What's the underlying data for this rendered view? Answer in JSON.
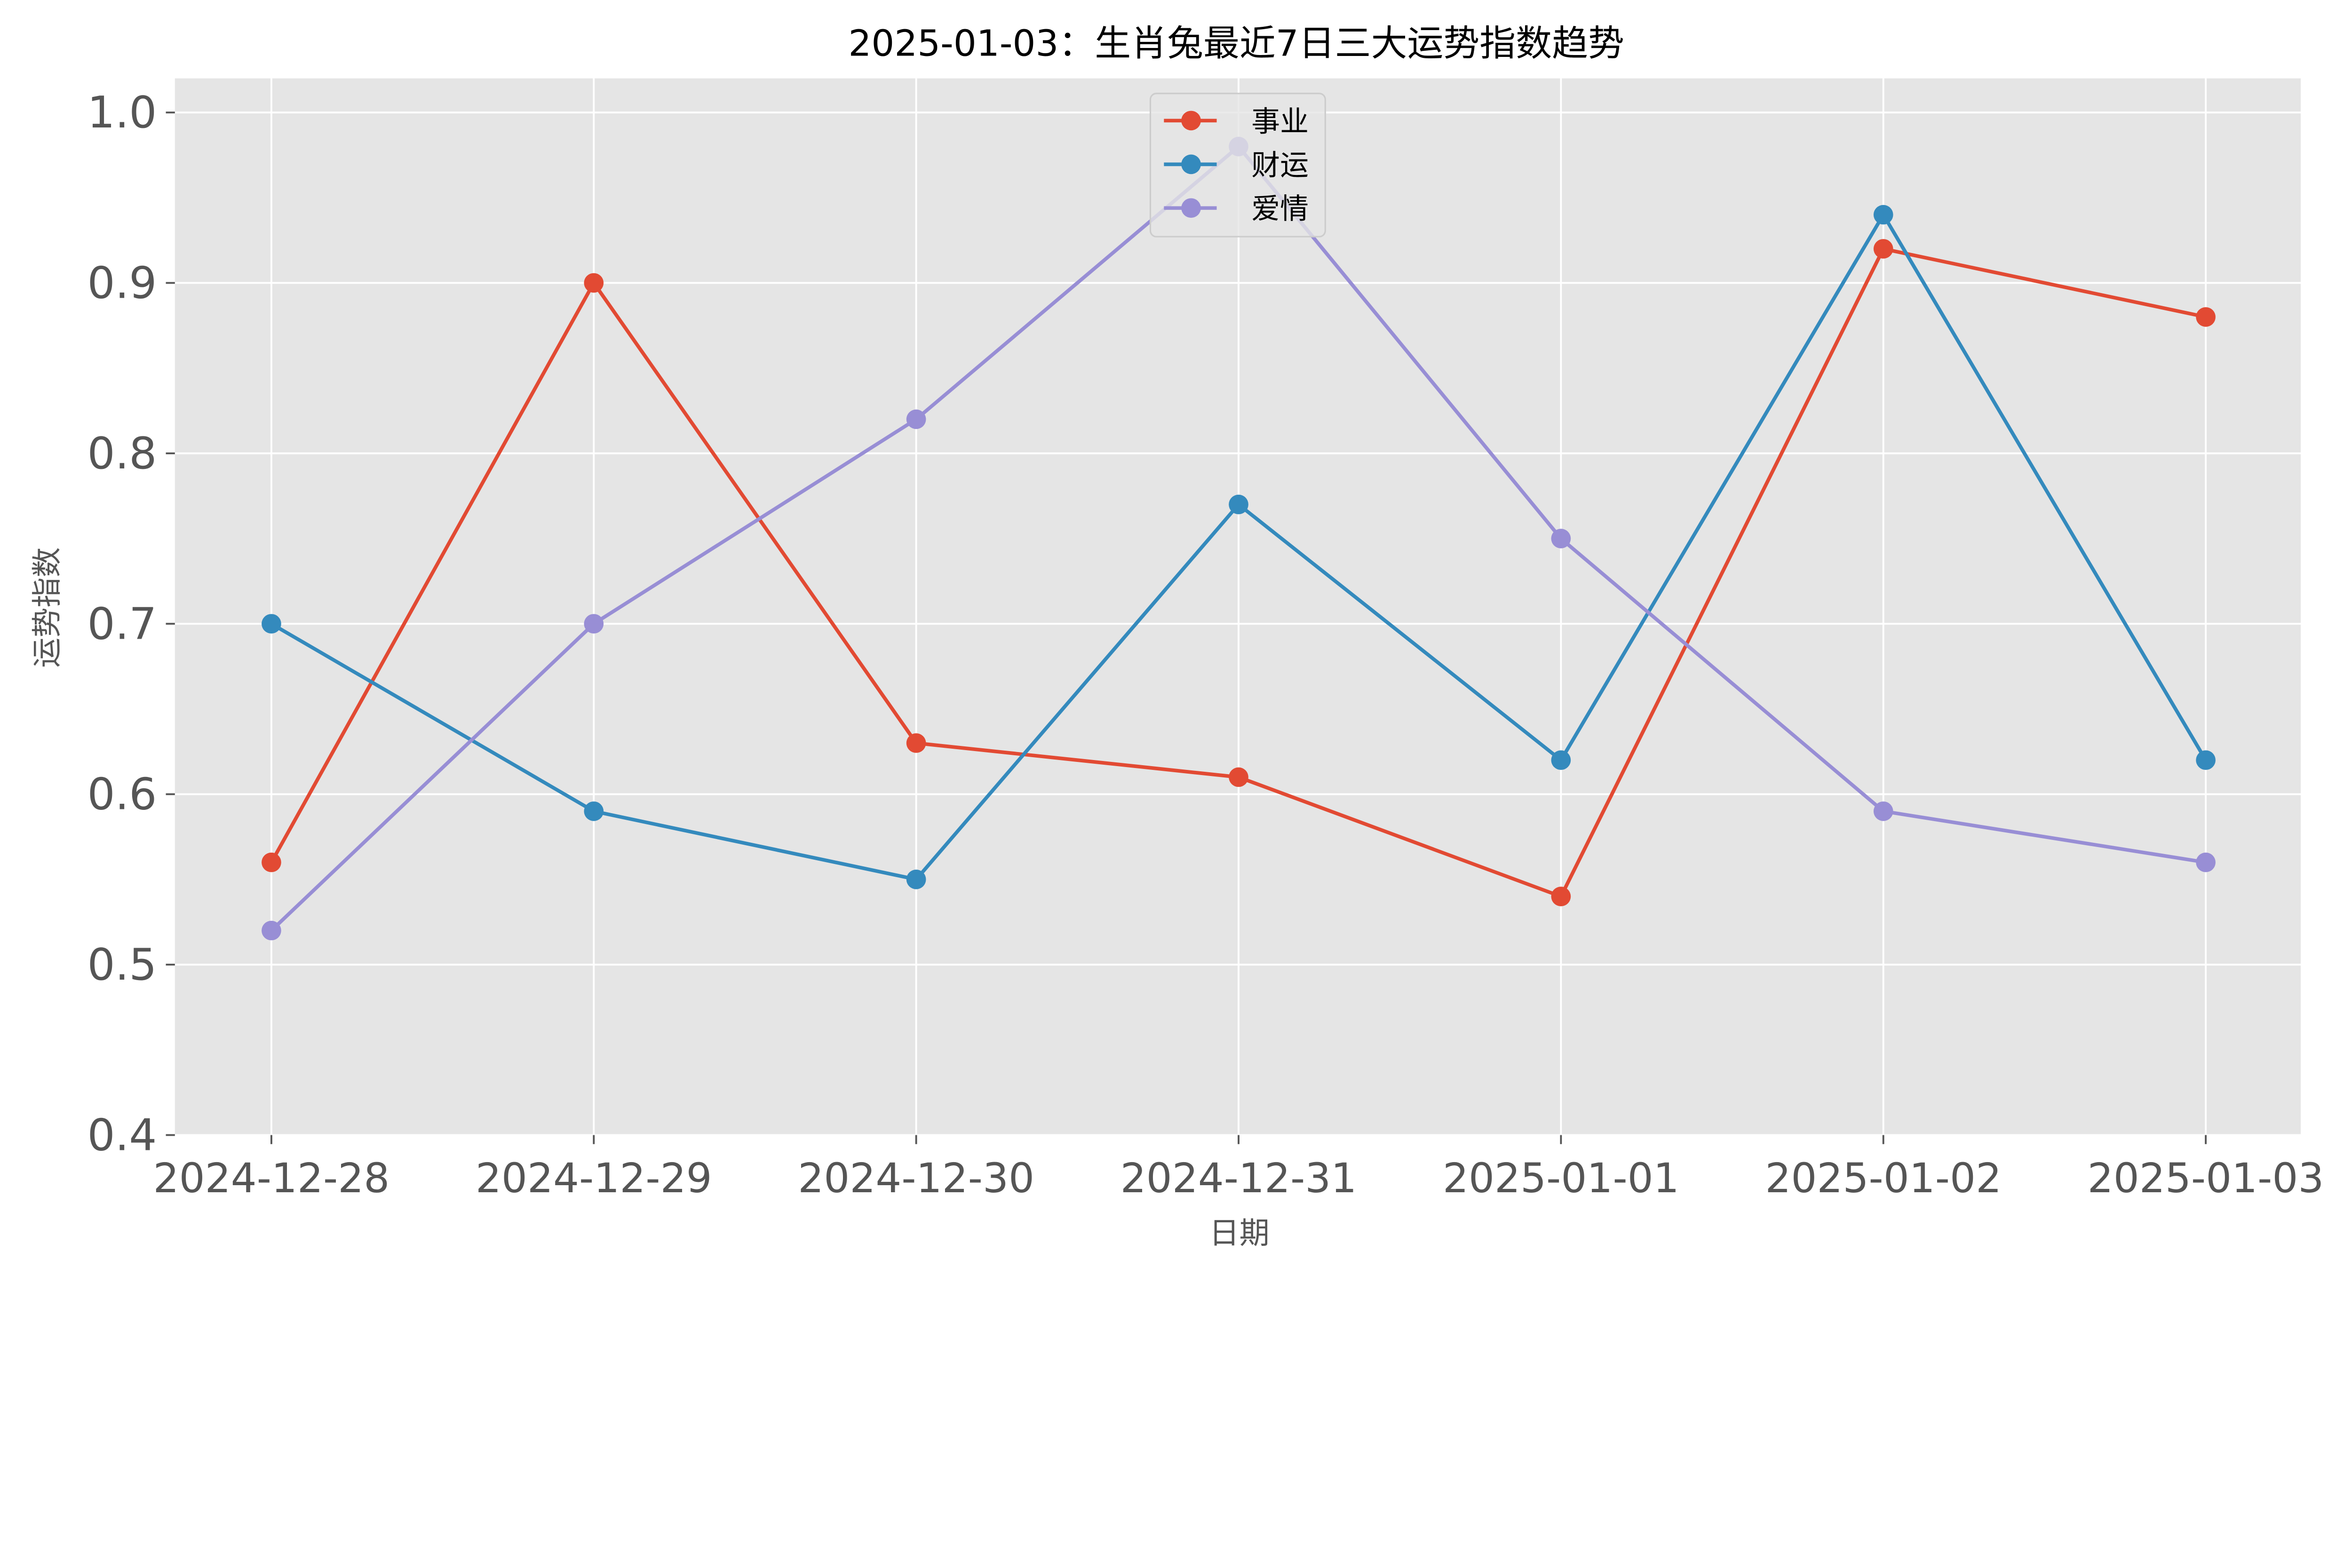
{
  "chart_data": {
    "type": "line",
    "title": "2025-01-03：生肖兔最近7日三大运势指数趋势",
    "xlabel": "日期",
    "ylabel": "运势指数",
    "categories": [
      "2024-12-28",
      "2024-12-29",
      "2024-12-30",
      "2024-12-31",
      "2025-01-01",
      "2025-01-02",
      "2025-01-03"
    ],
    "ylim": [
      0.4,
      1.02
    ],
    "yticks": [
      0.4,
      0.5,
      0.6,
      0.7,
      0.8,
      0.9,
      1.0
    ],
    "ytick_labels": [
      "0.4",
      "0.5",
      "0.6",
      "0.7",
      "0.8",
      "0.9",
      "1.0"
    ],
    "grid": true,
    "legend_placement": "upper-center",
    "style": {
      "background": "#E5E5E5",
      "grid_color": "#FFFFFF"
    },
    "series": [
      {
        "name": "事业",
        "color": "#E24A33",
        "marker": "circle",
        "values": [
          0.56,
          0.9,
          0.63,
          0.61,
          0.54,
          0.92,
          0.88
        ]
      },
      {
        "name": "财运",
        "color": "#348ABD",
        "marker": "circle",
        "values": [
          0.7,
          0.59,
          0.55,
          0.77,
          0.62,
          0.94,
          0.62
        ]
      },
      {
        "name": "爱情",
        "color": "#988ED5",
        "marker": "circle",
        "values": [
          0.52,
          0.7,
          0.82,
          0.98,
          0.75,
          0.59,
          0.56
        ]
      }
    ]
  }
}
